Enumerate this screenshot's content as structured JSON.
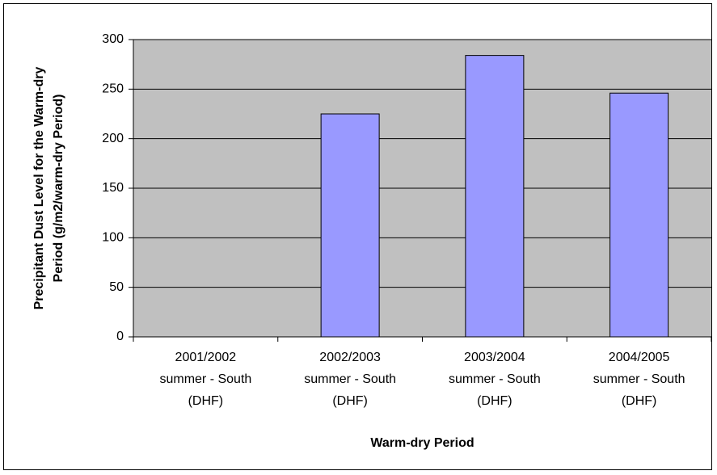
{
  "chart_data": {
    "type": "bar",
    "x_label": "Warm-dry Period",
    "y_label": "Precipitant Dust Level for the Warm-dry\nPeriod (g/m2/warm-dry Period)",
    "categories": [
      "2001/2002\nsummer - South\n(DHF)",
      "2002/2003\nsummer - South\n(DHF)",
      "2003/2004\nsummer - South\n(DHF)",
      "2004/2005\nsummer - South\n(DHF)"
    ],
    "values": [
      null,
      225,
      284,
      246
    ],
    "color": "#9999ff",
    "plot_background": "#c0c0c0",
    "ylim": [
      0,
      300
    ],
    "yticks": [
      0,
      50,
      100,
      150,
      200,
      250,
      300
    ],
    "grid": true
  }
}
